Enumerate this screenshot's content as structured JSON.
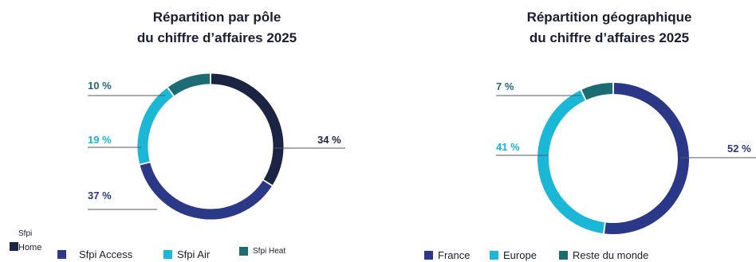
{
  "colors": {
    "home": "#1b2442",
    "access": "#2b3787",
    "air": "#1ab7d6",
    "heat": "#1d6b73",
    "france": "#2b3787",
    "europe": "#1ab7d6",
    "reste": "#1d6b73"
  },
  "chart_data": [
    {
      "type": "pie",
      "title_line1": "Répartition par pôle",
      "title_line2": "du chiffre d’affaires 2025",
      "series": [
        {
          "name": "Sfpi Home",
          "value": 34,
          "label": "34 %",
          "color": "#1b2442"
        },
        {
          "name": "Sfpi Access",
          "value": 37,
          "label": "37 %",
          "color": "#2b3787"
        },
        {
          "name": "Sfpi Air",
          "value": 19,
          "label": "19 %",
          "color": "#1ab7d6"
        },
        {
          "name": "Sfpi Heat",
          "value": 10,
          "label": "10 %",
          "color": "#1d6b73"
        }
      ],
      "legend": {
        "home_top": "Sfpi",
        "home_bottom": "Home",
        "access": "Sfpi Access",
        "air": "Sfpi Air",
        "heat": "Sfpi Heat"
      }
    },
    {
      "type": "pie",
      "title_line1": "Répartition géographique",
      "title_line2": "du chiffre d’affaires 2025",
      "series": [
        {
          "name": "France",
          "value": 52,
          "label": "52 %",
          "color": "#2b3787"
        },
        {
          "name": "Europe",
          "value": 41,
          "label": "41 %",
          "color": "#1ab7d6"
        },
        {
          "name": "Reste du monde",
          "value": 7,
          "label": "7 %",
          "color": "#1d6b73"
        }
      ],
      "legend": {
        "france": "France",
        "europe": "Europe",
        "reste": "Reste du monde"
      }
    }
  ]
}
